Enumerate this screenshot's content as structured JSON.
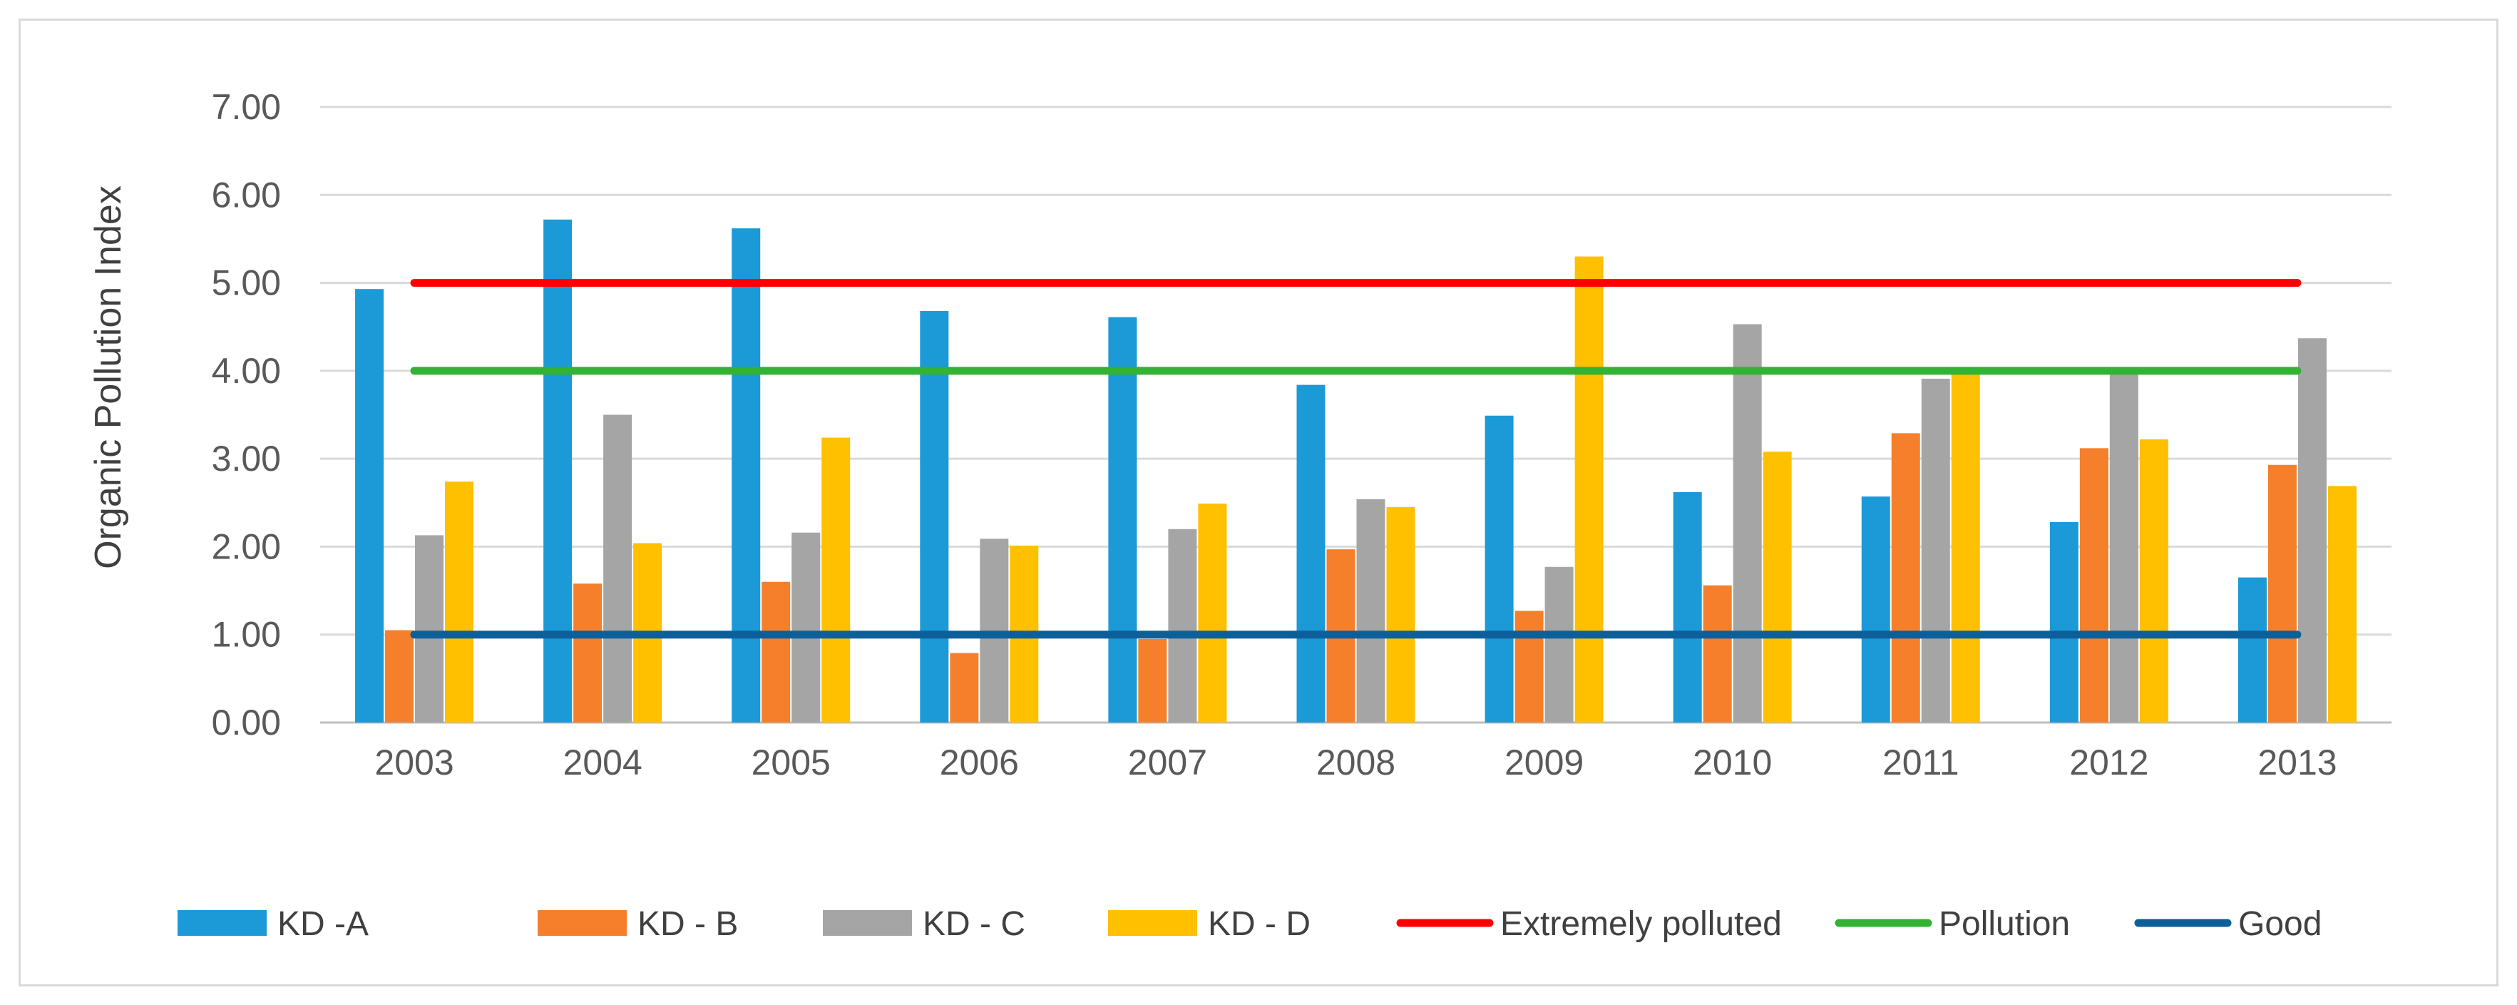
{
  "chart_data": {
    "type": "bar",
    "ylabel": "Organic  Pollution Index",
    "xlabel": "",
    "ylim": [
      0,
      7
    ],
    "yticks": [
      "0.00",
      "1.00",
      "2.00",
      "3.00",
      "4.00",
      "5.00",
      "6.00",
      "7.00"
    ],
    "grid": true,
    "legend_position": "bottom",
    "categories": [
      "2003",
      "2004",
      "2005",
      "2006",
      "2007",
      "2008",
      "2009",
      "2010",
      "2011",
      "2012",
      "2013"
    ],
    "series": [
      {
        "name": "KD -A",
        "kind": "bar",
        "color": "#1b9ad7",
        "values": [
          4.93,
          5.72,
          5.62,
          4.68,
          4.61,
          3.84,
          3.49,
          2.62,
          2.57,
          2.28,
          1.65
        ]
      },
      {
        "name": "KD - B",
        "kind": "bar",
        "color": "#f57f2a",
        "values": [
          1.05,
          1.58,
          1.6,
          0.79,
          0.95,
          1.97,
          1.27,
          1.56,
          3.29,
          3.12,
          2.93
        ]
      },
      {
        "name": "KD - C",
        "kind": "bar",
        "color": "#a5a5a5",
        "values": [
          2.13,
          3.5,
          2.16,
          2.09,
          2.2,
          2.54,
          1.77,
          4.53,
          3.91,
          3.96,
          4.37
        ]
      },
      {
        "name": "KD - D",
        "kind": "bar",
        "color": "#ffc000",
        "values": [
          2.74,
          2.04,
          3.24,
          2.01,
          2.49,
          2.45,
          5.3,
          3.08,
          3.98,
          3.22,
          2.69
        ]
      },
      {
        "name": "Extremely polluted",
        "kind": "line",
        "color": "#ff0000",
        "values": [
          5,
          5,
          5,
          5,
          5,
          5,
          5,
          5,
          5,
          5,
          5
        ]
      },
      {
        "name": "Pollution",
        "kind": "line",
        "color": "#33b233",
        "values": [
          4,
          4,
          4,
          4,
          4,
          4,
          4,
          4,
          4,
          4,
          4
        ]
      },
      {
        "name": "Good",
        "kind": "line",
        "color": "#0d5f9a",
        "values": [
          1,
          1,
          1,
          1,
          1,
          1,
          1,
          1,
          1,
          1,
          1
        ]
      }
    ]
  }
}
